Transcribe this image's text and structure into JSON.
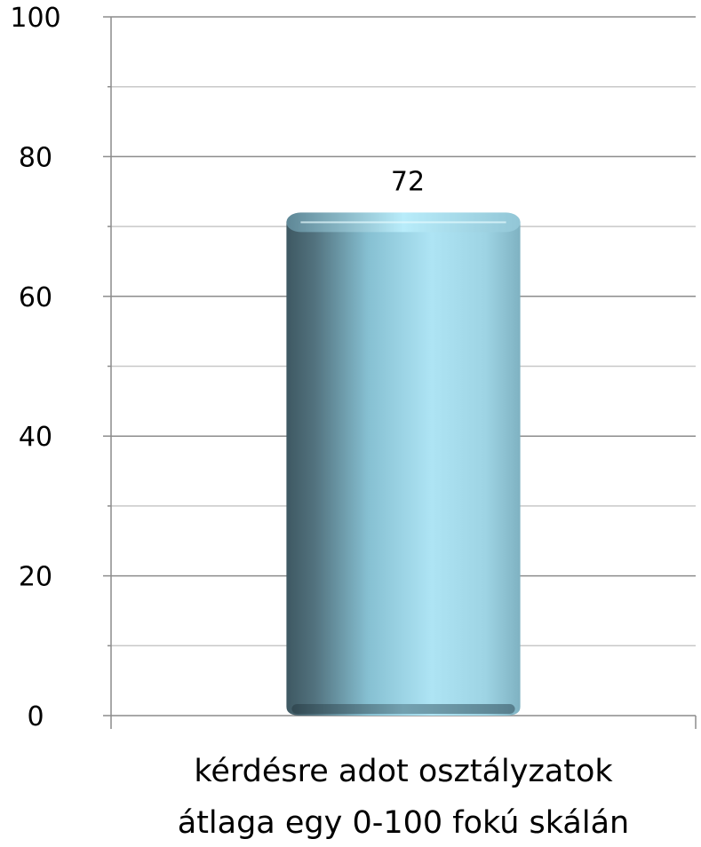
{
  "chart_data": {
    "type": "bar",
    "categories": [
      "kérdésre adot osztályzatok átlaga egy 0-100 fokú skálán"
    ],
    "category_label_lines": [
      "kérdésre adot osztályzatok",
      "átlaga egy 0-100 fokú skálán"
    ],
    "values": [
      72
    ],
    "data_labels": [
      "72"
    ],
    "ylim": [
      0,
      100
    ],
    "yticks": [
      0,
      20,
      40,
      60,
      80,
      100
    ],
    "ytick_labels": [
      "0",
      "20",
      "40",
      "60",
      "80",
      "100"
    ],
    "minor_step": 10,
    "title": "",
    "xlabel": "",
    "ylabel": "",
    "grid": true,
    "legend": "none",
    "bar_color": "#9fd6e6",
    "bar_shadow_color": "#3c5a66"
  }
}
